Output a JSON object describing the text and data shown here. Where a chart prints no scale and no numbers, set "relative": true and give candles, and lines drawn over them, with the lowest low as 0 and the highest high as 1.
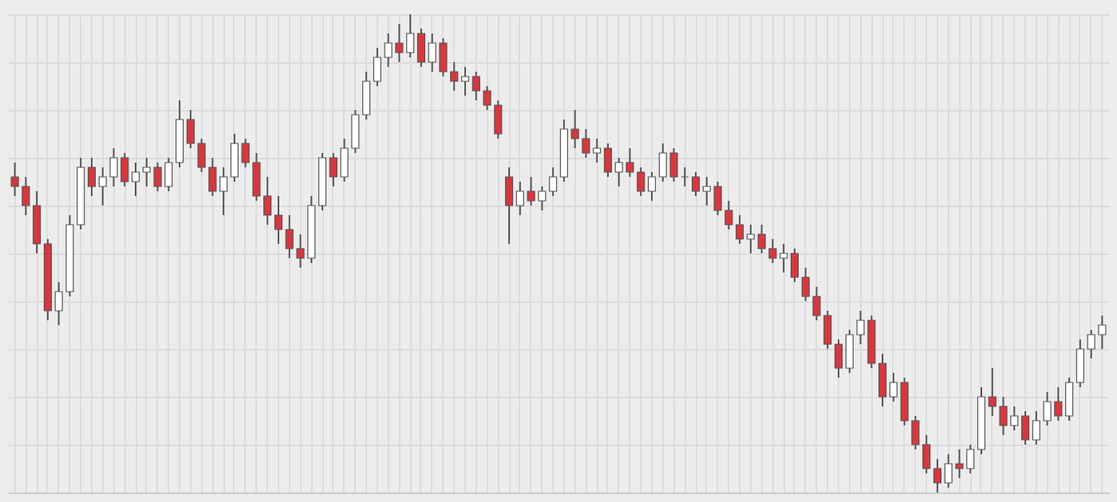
{
  "chart_data": {
    "type": "candlestick",
    "relative": true,
    "grid": true,
    "categories": [
      null,
      null,
      null,
      null,
      null,
      null,
      null,
      null,
      null,
      null,
      null,
      null,
      null,
      null,
      null,
      null,
      null,
      null,
      null,
      null,
      null,
      null,
      null,
      null,
      null,
      null,
      null,
      null,
      null,
      null,
      null,
      null,
      null,
      null,
      null,
      null,
      null,
      null,
      null,
      null,
      null,
      null,
      null,
      null,
      null,
      null,
      null,
      null,
      null,
      null,
      null,
      null,
      null,
      null,
      null,
      null,
      null,
      null,
      null,
      null,
      null,
      null,
      null,
      null,
      null,
      null,
      null,
      null,
      null,
      null,
      null,
      null,
      null,
      null,
      null,
      null,
      null,
      null,
      null,
      null,
      null,
      null,
      null,
      null,
      null,
      null,
      null,
      null,
      null,
      null,
      null,
      null,
      null,
      null,
      null,
      null,
      null,
      null,
      null,
      null
    ],
    "ohlc": [
      [
        0.66,
        0.69,
        0.62,
        0.64
      ],
      [
        0.64,
        0.66,
        0.58,
        0.6
      ],
      [
        0.6,
        0.63,
        0.5,
        0.52
      ],
      [
        0.52,
        0.53,
        0.36,
        0.38
      ],
      [
        0.38,
        0.44,
        0.35,
        0.42
      ],
      [
        0.42,
        0.58,
        0.41,
        0.56
      ],
      [
        0.56,
        0.7,
        0.55,
        0.68
      ],
      [
        0.68,
        0.7,
        0.62,
        0.64
      ],
      [
        0.64,
        0.68,
        0.6,
        0.66
      ],
      [
        0.66,
        0.72,
        0.64,
        0.7
      ],
      [
        0.7,
        0.71,
        0.64,
        0.65
      ],
      [
        0.65,
        0.69,
        0.62,
        0.67
      ],
      [
        0.67,
        0.7,
        0.64,
        0.68
      ],
      [
        0.68,
        0.69,
        0.63,
        0.64
      ],
      [
        0.64,
        0.7,
        0.63,
        0.69
      ],
      [
        0.69,
        0.82,
        0.68,
        0.78
      ],
      [
        0.78,
        0.8,
        0.72,
        0.73
      ],
      [
        0.73,
        0.74,
        0.67,
        0.68
      ],
      [
        0.68,
        0.7,
        0.62,
        0.63
      ],
      [
        0.63,
        0.68,
        0.58,
        0.66
      ],
      [
        0.66,
        0.75,
        0.65,
        0.73
      ],
      [
        0.73,
        0.74,
        0.68,
        0.69
      ],
      [
        0.69,
        0.71,
        0.61,
        0.62
      ],
      [
        0.62,
        0.66,
        0.56,
        0.58
      ],
      [
        0.58,
        0.62,
        0.52,
        0.55
      ],
      [
        0.55,
        0.58,
        0.49,
        0.51
      ],
      [
        0.51,
        0.54,
        0.47,
        0.49
      ],
      [
        0.49,
        0.62,
        0.48,
        0.6
      ],
      [
        0.6,
        0.71,
        0.59,
        0.7
      ],
      [
        0.7,
        0.71,
        0.64,
        0.66
      ],
      [
        0.66,
        0.74,
        0.65,
        0.72
      ],
      [
        0.72,
        0.8,
        0.71,
        0.79
      ],
      [
        0.79,
        0.88,
        0.78,
        0.86
      ],
      [
        0.86,
        0.93,
        0.85,
        0.91
      ],
      [
        0.91,
        0.96,
        0.89,
        0.94
      ],
      [
        0.94,
        0.98,
        0.9,
        0.92
      ],
      [
        0.92,
        1.0,
        0.91,
        0.96
      ],
      [
        0.96,
        0.97,
        0.89,
        0.9
      ],
      [
        0.9,
        0.96,
        0.88,
        0.94
      ],
      [
        0.94,
        0.95,
        0.87,
        0.88
      ],
      [
        0.88,
        0.9,
        0.84,
        0.86
      ],
      [
        0.86,
        0.89,
        0.83,
        0.87
      ],
      [
        0.87,
        0.88,
        0.82,
        0.84
      ],
      [
        0.84,
        0.85,
        0.8,
        0.81
      ],
      [
        0.81,
        0.82,
        0.74,
        0.75
      ],
      [
        0.66,
        0.68,
        0.52,
        0.6
      ],
      [
        0.6,
        0.65,
        0.58,
        0.63
      ],
      [
        0.63,
        0.66,
        0.6,
        0.61
      ],
      [
        0.61,
        0.64,
        0.59,
        0.63
      ],
      [
        0.63,
        0.68,
        0.62,
        0.66
      ],
      [
        0.66,
        0.78,
        0.65,
        0.76
      ],
      [
        0.76,
        0.8,
        0.72,
        0.74
      ],
      [
        0.74,
        0.76,
        0.7,
        0.71
      ],
      [
        0.71,
        0.74,
        0.69,
        0.72
      ],
      [
        0.72,
        0.73,
        0.66,
        0.67
      ],
      [
        0.67,
        0.7,
        0.64,
        0.69
      ],
      [
        0.69,
        0.72,
        0.66,
        0.67
      ],
      [
        0.67,
        0.68,
        0.62,
        0.63
      ],
      [
        0.63,
        0.67,
        0.61,
        0.66
      ],
      [
        0.66,
        0.73,
        0.65,
        0.71
      ],
      [
        0.71,
        0.72,
        0.65,
        0.66
      ],
      [
        0.66,
        0.68,
        0.64,
        0.66
      ],
      [
        0.66,
        0.67,
        0.62,
        0.63
      ],
      [
        0.63,
        0.66,
        0.6,
        0.64
      ],
      [
        0.64,
        0.65,
        0.58,
        0.59
      ],
      [
        0.59,
        0.61,
        0.55,
        0.56
      ],
      [
        0.56,
        0.58,
        0.52,
        0.53
      ],
      [
        0.53,
        0.56,
        0.5,
        0.54
      ],
      [
        0.54,
        0.56,
        0.5,
        0.51
      ],
      [
        0.51,
        0.53,
        0.48,
        0.49
      ],
      [
        0.49,
        0.52,
        0.46,
        0.5
      ],
      [
        0.5,
        0.51,
        0.44,
        0.45
      ],
      [
        0.45,
        0.47,
        0.4,
        0.41
      ],
      [
        0.41,
        0.43,
        0.36,
        0.37
      ],
      [
        0.37,
        0.38,
        0.3,
        0.31
      ],
      [
        0.31,
        0.32,
        0.24,
        0.26
      ],
      [
        0.26,
        0.34,
        0.25,
        0.33
      ],
      [
        0.33,
        0.38,
        0.31,
        0.36
      ],
      [
        0.36,
        0.37,
        0.26,
        0.27
      ],
      [
        0.27,
        0.29,
        0.18,
        0.2
      ],
      [
        0.2,
        0.25,
        0.19,
        0.23
      ],
      [
        0.23,
        0.24,
        0.14,
        0.15
      ],
      [
        0.15,
        0.16,
        0.09,
        0.1
      ],
      [
        0.1,
        0.12,
        0.04,
        0.05
      ],
      [
        0.05,
        0.07,
        0.0,
        0.02
      ],
      [
        0.02,
        0.08,
        0.01,
        0.06
      ],
      [
        0.06,
        0.09,
        0.03,
        0.05
      ],
      [
        0.05,
        0.1,
        0.04,
        0.09
      ],
      [
        0.09,
        0.22,
        0.08,
        0.2
      ],
      [
        0.2,
        0.26,
        0.16,
        0.18
      ],
      [
        0.18,
        0.2,
        0.12,
        0.14
      ],
      [
        0.14,
        0.18,
        0.13,
        0.16
      ],
      [
        0.16,
        0.17,
        0.1,
        0.11
      ],
      [
        0.11,
        0.17,
        0.1,
        0.15
      ],
      [
        0.15,
        0.21,
        0.14,
        0.19
      ],
      [
        0.19,
        0.22,
        0.15,
        0.16
      ],
      [
        0.16,
        0.24,
        0.15,
        0.23
      ],
      [
        0.23,
        0.32,
        0.22,
        0.3
      ],
      [
        0.3,
        0.34,
        0.28,
        0.33
      ],
      [
        0.33,
        0.37,
        0.3,
        0.35
      ]
    ]
  }
}
